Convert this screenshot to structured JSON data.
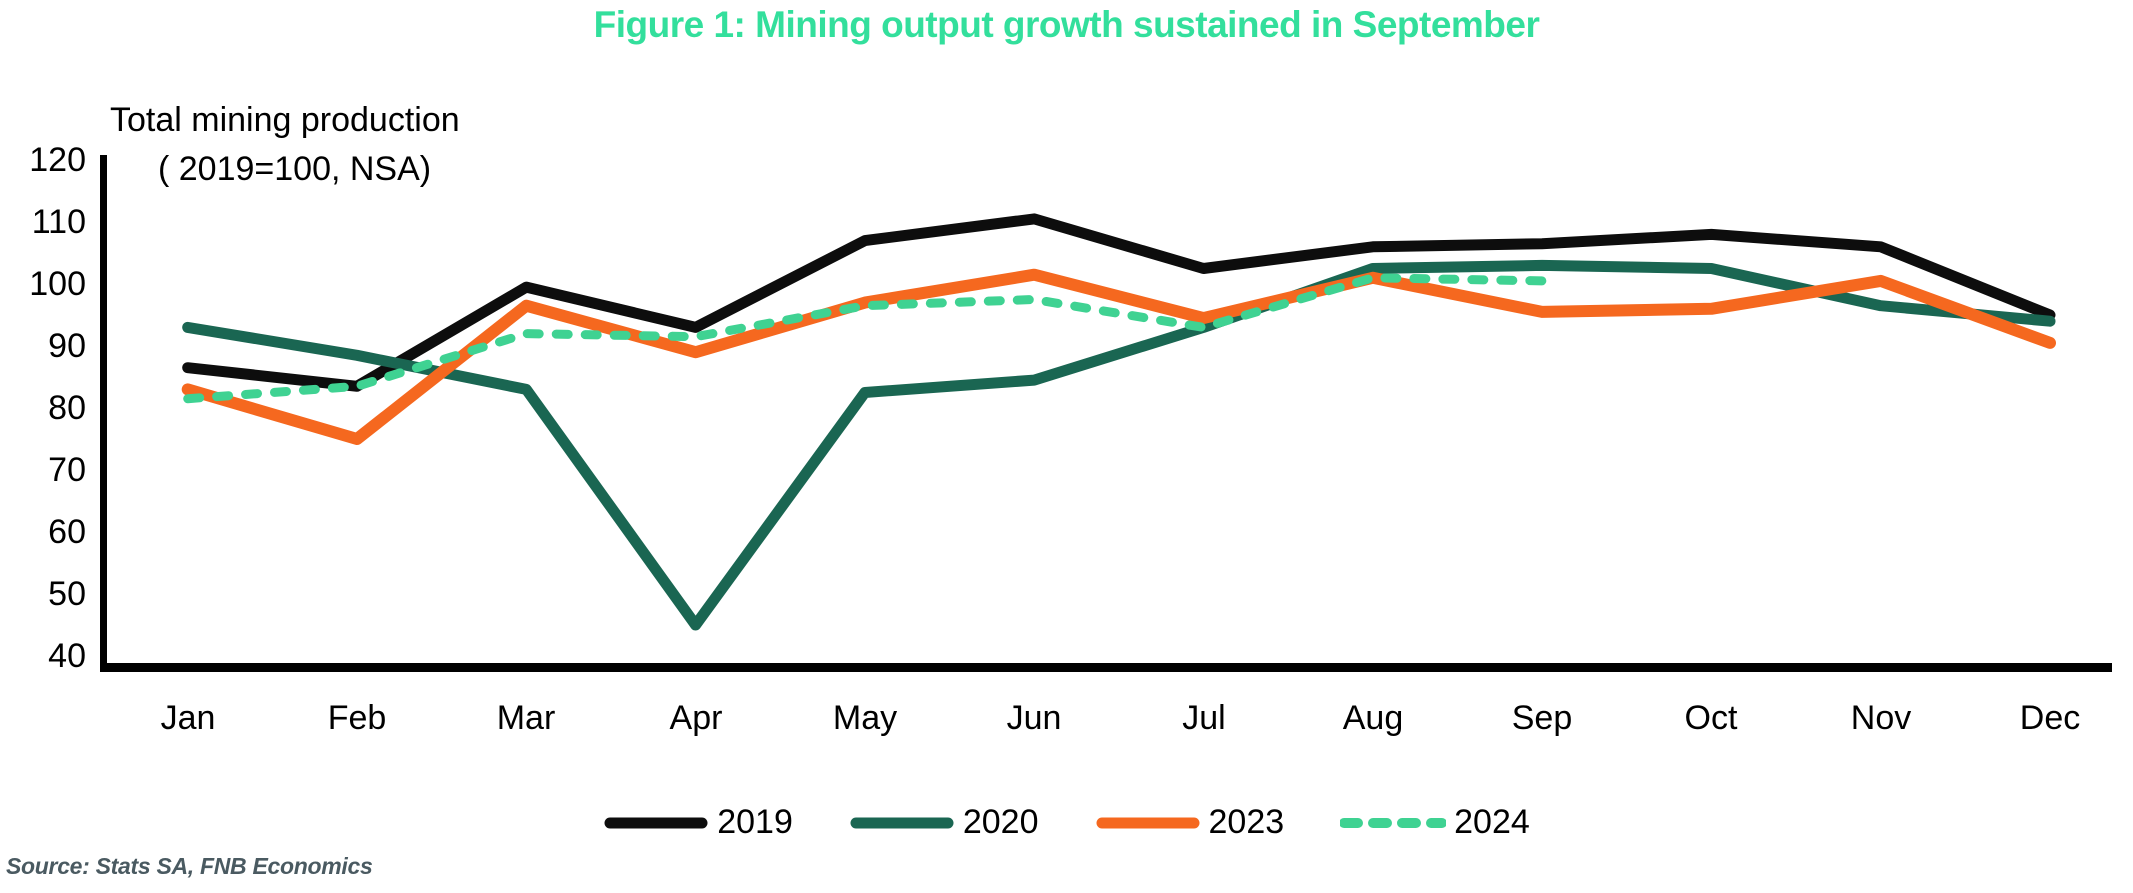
{
  "source": "Source: Stats SA, FNB Economics",
  "colors": {
    "title": "#33df9c",
    "axis": "#000000",
    "source_text": "#4a5a61"
  },
  "chart_data": {
    "type": "line",
    "title": "Figure 1: Mining output growth sustained in September",
    "ylabel": "Total mining production ( 2019=100, NSA)",
    "ylabel_line1": "Total mining production",
    "ylabel_line2": "( 2019=100, NSA)",
    "xlabel": "",
    "categories": [
      "Jan",
      "Feb",
      "Mar",
      "Apr",
      "May",
      "Jun",
      "Jul",
      "Aug",
      "Sep",
      "Oct",
      "Nov",
      "Dec"
    ],
    "y_ticks": [
      120,
      110,
      100,
      90,
      80,
      70,
      60,
      50,
      40
    ],
    "ylim": [
      40,
      120
    ],
    "grid": false,
    "legend_position": "bottom",
    "series": [
      {
        "name": "2019",
        "color": "#0d0d0d",
        "style": "solid",
        "stroke_width": 11,
        "values": [
          86.5,
          83.5,
          99.5,
          93,
          107,
          110.5,
          102.5,
          106,
          106.5,
          108,
          106,
          95
        ]
      },
      {
        "name": "2020",
        "color": "#1a6652",
        "style": "solid",
        "stroke_width": 11,
        "values": [
          93,
          88.5,
          83,
          45,
          82.5,
          84.5,
          93,
          102.5,
          103,
          102.5,
          96.5,
          94
        ]
      },
      {
        "name": "2023",
        "color": "#f5681f",
        "style": "solid",
        "stroke_width": 12,
        "values": [
          83,
          75,
          96.5,
          89,
          97,
          101.5,
          94.5,
          101,
          95.5,
          96,
          100.5,
          90.5
        ]
      },
      {
        "name": "2024",
        "color": "#3fd292",
        "style": "dashed",
        "stroke_width": 9,
        "values": [
          81.5,
          83.5,
          92,
          91.5,
          96.5,
          97.5,
          93,
          101,
          100.5
        ]
      }
    ]
  }
}
